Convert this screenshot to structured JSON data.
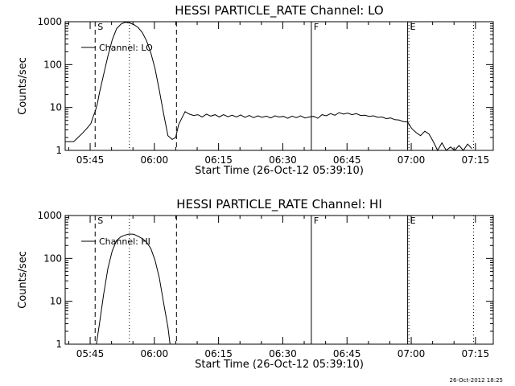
{
  "chart_data": [
    {
      "type": "line",
      "title": "HESSI PARTICLE_RATE Channel: LO",
      "xlabel": "Start Time (26-Oct-12 05:39:10)",
      "ylabel": "Counts/sec",
      "yscale": "log",
      "ylim": [
        1,
        1000
      ],
      "xlim_minutes": [
        0,
        100
      ],
      "x_tick_labels": [
        "05:45",
        "06:00",
        "06:15",
        "06:30",
        "06:45",
        "07:00",
        "07:15"
      ],
      "y_tick_labels": [
        "1",
        "10",
        "100",
        "1000"
      ],
      "legend": "Channel: LO",
      "legend_position": "top-left",
      "markers": [
        {
          "label": "S",
          "style": "dashed",
          "minutes": 7
        },
        {
          "label": "",
          "style": "dotted",
          "minutes": 15
        },
        {
          "label": "",
          "style": "dashed",
          "minutes": 26
        },
        {
          "label": "F",
          "style": "solid",
          "minutes": 57.5
        },
        {
          "label": "E",
          "style": "solid",
          "minutes": 80
        },
        {
          "label": "",
          "style": "dotted",
          "minutes": 80.3
        },
        {
          "label": "",
          "style": "dotted",
          "minutes": 95.4
        }
      ],
      "series": [
        {
          "name": "Channel: LO",
          "points": [
            [
              0,
              1.6
            ],
            [
              2,
              1.6
            ],
            [
              3,
              2
            ],
            [
              4,
              2.5
            ],
            [
              5,
              3.2
            ],
            [
              6,
              4.2
            ],
            [
              6.5,
              6
            ],
            [
              7,
              8
            ],
            [
              7.5,
              12
            ],
            [
              8,
              22
            ],
            [
              9,
              60
            ],
            [
              10,
              160
            ],
            [
              11,
              380
            ],
            [
              12,
              680
            ],
            [
              13,
              880
            ],
            [
              14,
              970
            ],
            [
              15,
              940
            ],
            [
              16,
              860
            ],
            [
              17,
              740
            ],
            [
              18,
              560
            ],
            [
              19,
              360
            ],
            [
              20,
              190
            ],
            [
              21,
              80
            ],
            [
              22,
              25
            ],
            [
              23,
              7
            ],
            [
              24,
              2.2
            ],
            [
              25,
              1.8
            ],
            [
              25.8,
              2
            ],
            [
              26.5,
              4
            ],
            [
              27,
              5
            ],
            [
              28,
              8
            ],
            [
              29,
              7
            ],
            [
              30,
              6.5
            ],
            [
              31,
              6.8
            ],
            [
              32,
              6
            ],
            [
              33,
              7
            ],
            [
              34,
              6.3
            ],
            [
              35,
              6.8
            ],
            [
              36,
              6
            ],
            [
              37,
              6.8
            ],
            [
              38,
              6.1
            ],
            [
              39,
              6.6
            ],
            [
              40,
              6
            ],
            [
              41,
              6.7
            ],
            [
              42,
              5.9
            ],
            [
              43,
              6.5
            ],
            [
              44,
              5.8
            ],
            [
              45,
              6.4
            ],
            [
              46,
              5.9
            ],
            [
              47,
              6.3
            ],
            [
              48,
              5.7
            ],
            [
              49,
              6.4
            ],
            [
              50,
              6
            ],
            [
              51,
              6.2
            ],
            [
              52,
              5.6
            ],
            [
              53,
              6.3
            ],
            [
              54,
              5.8
            ],
            [
              55,
              6.4
            ],
            [
              56,
              5.7
            ],
            [
              57,
              6
            ],
            [
              58,
              6.2
            ],
            [
              59,
              5.6
            ],
            [
              60,
              6.8
            ],
            [
              61,
              6.4
            ],
            [
              62,
              7.2
            ],
            [
              63,
              6.6
            ],
            [
              64,
              7.6
            ],
            [
              65,
              7
            ],
            [
              66,
              7.4
            ],
            [
              67,
              6.8
            ],
            [
              68,
              7.2
            ],
            [
              69,
              6.5
            ],
            [
              70,
              6.6
            ],
            [
              71,
              6.2
            ],
            [
              72,
              6.4
            ],
            [
              73,
              5.9
            ],
            [
              74,
              6
            ],
            [
              75,
              5.5
            ],
            [
              76,
              5.7
            ],
            [
              77,
              5.2
            ],
            [
              78,
              5.1
            ],
            [
              79,
              4.7
            ],
            [
              80,
              4.6
            ],
            [
              81,
              3.2
            ],
            [
              82,
              2.6
            ],
            [
              83,
              2.2
            ],
            [
              84,
              2.8
            ],
            [
              85,
              2.4
            ],
            [
              86,
              1.6
            ],
            [
              87,
              1
            ],
            [
              88,
              1.5
            ],
            [
              89,
              1
            ],
            [
              90,
              1.2
            ],
            [
              91,
              1
            ],
            [
              92,
              1.3
            ],
            [
              93,
              1
            ],
            [
              94,
              1.4
            ],
            [
              95,
              1.1
            ]
          ]
        }
      ]
    },
    {
      "type": "line",
      "title": "HESSI PARTICLE_RATE Channel: HI",
      "xlabel": "Start Time (26-Oct-12 05:39:10)",
      "ylabel": "Counts/sec",
      "yscale": "log",
      "ylim": [
        1,
        1000
      ],
      "xlim_minutes": [
        0,
        100
      ],
      "x_tick_labels": [
        "05:45",
        "06:00",
        "06:15",
        "06:30",
        "06:45",
        "07:00",
        "07:15"
      ],
      "y_tick_labels": [
        "1",
        "10",
        "100",
        "1000"
      ],
      "legend": "Channel: HI",
      "legend_position": "top-left",
      "markers": [
        {
          "label": "S",
          "style": "dashed",
          "minutes": 7
        },
        {
          "label": "",
          "style": "dotted",
          "minutes": 15
        },
        {
          "label": "",
          "style": "dashed",
          "minutes": 26
        },
        {
          "label": "F",
          "style": "solid",
          "minutes": 57.5
        },
        {
          "label": "E",
          "style": "solid",
          "minutes": 80
        },
        {
          "label": "",
          "style": "dotted",
          "minutes": 80.3
        },
        {
          "label": "",
          "style": "dotted",
          "minutes": 95.4
        }
      ],
      "series": [
        {
          "name": "Channel: HI",
          "points": [
            [
              7.3,
              1
            ],
            [
              8,
              3
            ],
            [
              9,
              15
            ],
            [
              10,
              60
            ],
            [
              11,
              150
            ],
            [
              12,
              260
            ],
            [
              13,
              320
            ],
            [
              14,
              350
            ],
            [
              15,
              370
            ],
            [
              16,
              365
            ],
            [
              17,
              330
            ],
            [
              18,
              290
            ],
            [
              19,
              240
            ],
            [
              20,
              170
            ],
            [
              21,
              90
            ],
            [
              22,
              35
            ],
            [
              23,
              9
            ],
            [
              24,
              2.5
            ],
            [
              24.5,
              1
            ]
          ]
        }
      ]
    }
  ],
  "footer": {
    "timestamp": "26-Oct-2012 18:25"
  }
}
